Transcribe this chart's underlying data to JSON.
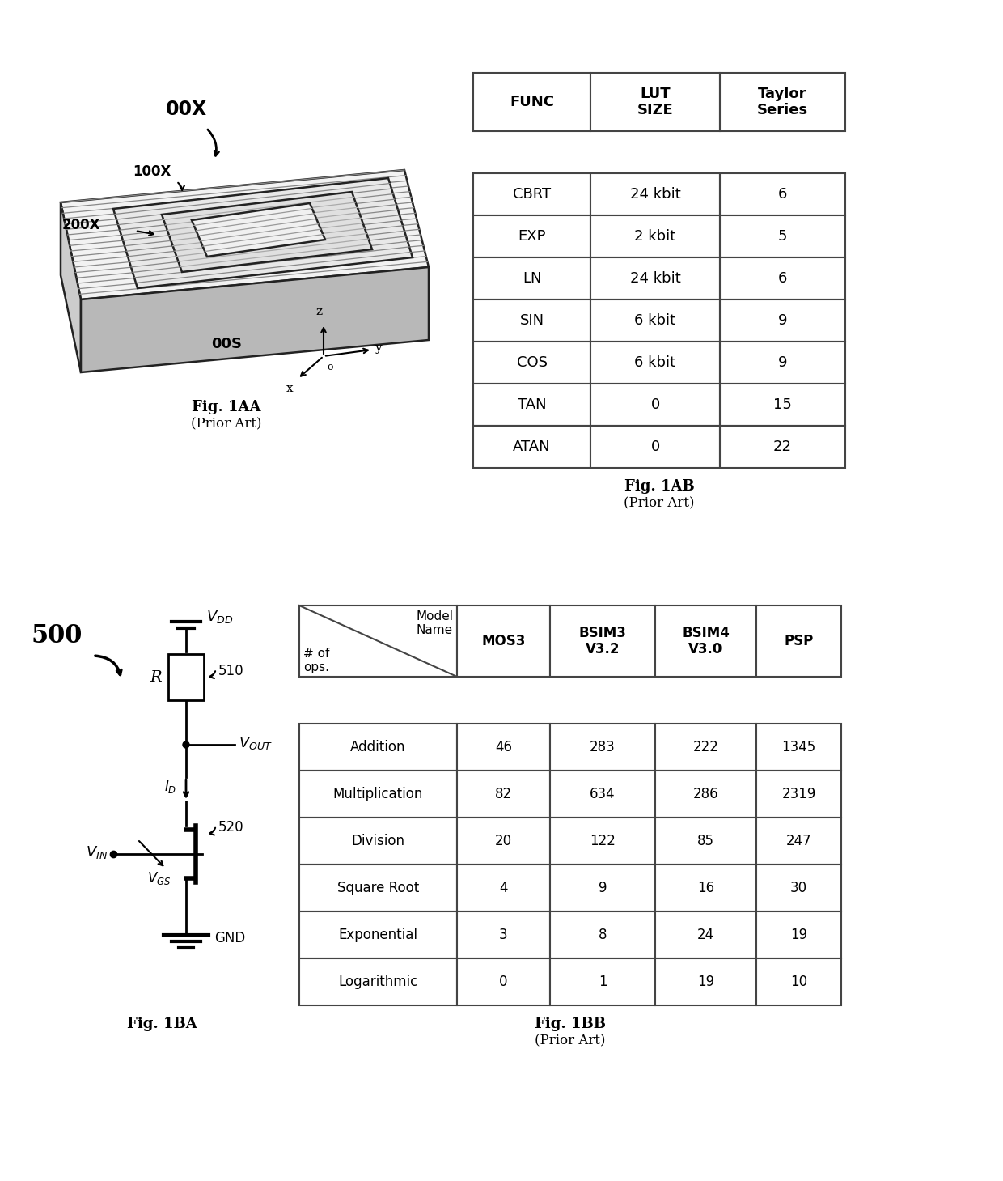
{
  "bg_color": "#ffffff",
  "table1_headers": [
    "FUNC",
    "LUT\nSIZE",
    "Taylor\nSeries"
  ],
  "table1_rows": [
    [
      "CBRT",
      "24 kbit",
      "6"
    ],
    [
      "EXP",
      "2 kbit",
      "5"
    ],
    [
      "LN",
      "24 kbit",
      "6"
    ],
    [
      "SIN",
      "6 kbit",
      "9"
    ],
    [
      "COS",
      "6 kbit",
      "9"
    ],
    [
      "TAN",
      "0",
      "15"
    ],
    [
      "ATAN",
      "0",
      "22"
    ]
  ],
  "table2_col_headers": [
    "MOS3",
    "BSIM3\nV3.2",
    "BSIM4\nV3.0",
    "PSP"
  ],
  "table2_row_header_top": "Model\nName",
  "table2_row_header_bottom": "# of\nops.",
  "table2_rows": [
    [
      "Addition",
      "46",
      "283",
      "222",
      "1345"
    ],
    [
      "Multiplication",
      "82",
      "634",
      "286",
      "2319"
    ],
    [
      "Division",
      "20",
      "122",
      "85",
      "247"
    ],
    [
      "Square Root",
      "4",
      "9",
      "16",
      "30"
    ],
    [
      "Exponential",
      "3",
      "8",
      "24",
      "19"
    ],
    [
      "Logarithmic",
      "0",
      "1",
      "19",
      "10"
    ]
  ],
  "chip_label_00X": "00X",
  "chip_label_100X": "100X",
  "chip_label_200X": "200X",
  "chip_label_00S": "00S",
  "fig1AA": "Fig. 1AA",
  "fig1AA_sub": "(Prior Art)",
  "fig1AB": "Fig. 1AB",
  "fig1AB_sub": "(Prior Art)",
  "fig1BA": "Fig. 1BA",
  "fig1BB": "Fig. 1BB",
  "fig1BB_sub": "(Prior Art)",
  "label_500": "500",
  "label_R": "R",
  "label_510": "510",
  "label_520": "520",
  "label_VDD": "$V_{DD}$",
  "label_VOUT": "$V_{OUT}$",
  "label_ID": "$I_D$",
  "label_VIN": "$V_{IN}$",
  "label_VGS": "$V_{GS}$",
  "label_GND": "GND"
}
